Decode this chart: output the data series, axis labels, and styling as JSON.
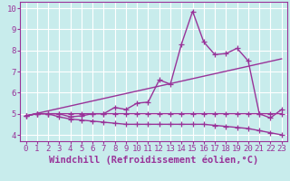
{
  "xlabel": "Windchill (Refroidissement éolien,°C)",
  "bg_color": "#c8ecec",
  "grid_color": "#ffffff",
  "line_color": "#993399",
  "xmin": -0.5,
  "xmax": 23.5,
  "ymin": 3.7,
  "ymax": 10.3,
  "xticks": [
    0,
    1,
    2,
    3,
    4,
    5,
    6,
    7,
    8,
    9,
    10,
    11,
    12,
    13,
    14,
    15,
    16,
    17,
    18,
    19,
    20,
    21,
    22,
    23
  ],
  "yticks": [
    4,
    5,
    6,
    7,
    8,
    9,
    10
  ],
  "series": [
    {
      "x": [
        0,
        1,
        2,
        3,
        4,
        5,
        6,
        7,
        8,
        9,
        10,
        11,
        12,
        13,
        14,
        15,
        16,
        17,
        18,
        19,
        20,
        21,
        22,
        23
      ],
      "y": [
        4.9,
        5.0,
        5.0,
        5.0,
        5.0,
        5.0,
        5.0,
        5.0,
        5.0,
        5.0,
        5.0,
        5.0,
        5.0,
        5.0,
        5.0,
        5.0,
        5.0,
        5.0,
        5.0,
        5.0,
        5.0,
        5.0,
        5.0,
        5.0
      ]
    },
    {
      "x": [
        0,
        1,
        2,
        3,
        4,
        5,
        6,
        7,
        8,
        9,
        10,
        11,
        12,
        13,
        14,
        15,
        16,
        17,
        18,
        19,
        20,
        21,
        22,
        23
      ],
      "y": [
        4.9,
        5.0,
        5.0,
        4.85,
        4.75,
        4.7,
        4.65,
        4.6,
        4.55,
        4.5,
        4.5,
        4.5,
        4.5,
        4.5,
        4.5,
        4.5,
        4.5,
        4.45,
        4.4,
        4.35,
        4.3,
        4.2,
        4.1,
        4.0
      ]
    },
    {
      "x": [
        0,
        1,
        2,
        3,
        4,
        5,
        6,
        7,
        8,
        9,
        10,
        11,
        12,
        13,
        14,
        15,
        16,
        17,
        18,
        19,
        20,
        21,
        22,
        23
      ],
      "y": [
        4.9,
        5.0,
        5.0,
        5.0,
        4.85,
        4.9,
        5.0,
        5.0,
        5.3,
        5.2,
        5.5,
        5.55,
        6.6,
        6.4,
        8.3,
        9.85,
        8.4,
        7.8,
        7.85,
        8.1,
        7.5,
        5.0,
        4.8,
        5.2
      ]
    },
    {
      "x": [
        0,
        23
      ],
      "y": [
        4.9,
        7.6
      ]
    }
  ],
  "marker": "+",
  "markersize": 4,
  "linewidth": 1.0,
  "xlabel_fontsize": 7.5,
  "tick_fontsize": 6.5
}
